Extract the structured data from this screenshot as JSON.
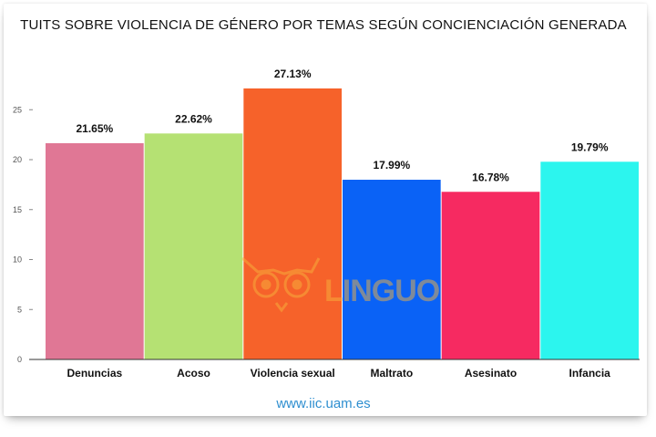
{
  "chart_data": {
    "type": "bar",
    "title": "TUITS SOBRE VIOLENCIA DE GÉNERO POR TEMAS SEGÚN CONCIENCIACIÓN GENERADA",
    "categories": [
      "Denuncias",
      "Acoso",
      "Violencia sexual",
      "Maltrato",
      "Asesinato",
      "Infancia"
    ],
    "values": [
      21.65,
      22.62,
      27.13,
      17.99,
      16.78,
      19.79
    ],
    "value_labels": [
      "21.65%",
      "22.62%",
      "27.13%",
      "17.99%",
      "16.78%",
      "19.79%"
    ],
    "colors": [
      "#e07795",
      "#b5e173",
      "#f6622a",
      "#0a62f6",
      "#f62a61",
      "#2cf5ee"
    ],
    "yticks": [
      0,
      5,
      10,
      15,
      20,
      25
    ],
    "ylim": [
      0,
      28
    ],
    "xlabel": "",
    "ylabel": "",
    "grid": false
  },
  "watermark": {
    "text": "LINGUO",
    "icon": "owl-icon",
    "color": "#f6b23c"
  },
  "source": "www.iic.uam.es"
}
